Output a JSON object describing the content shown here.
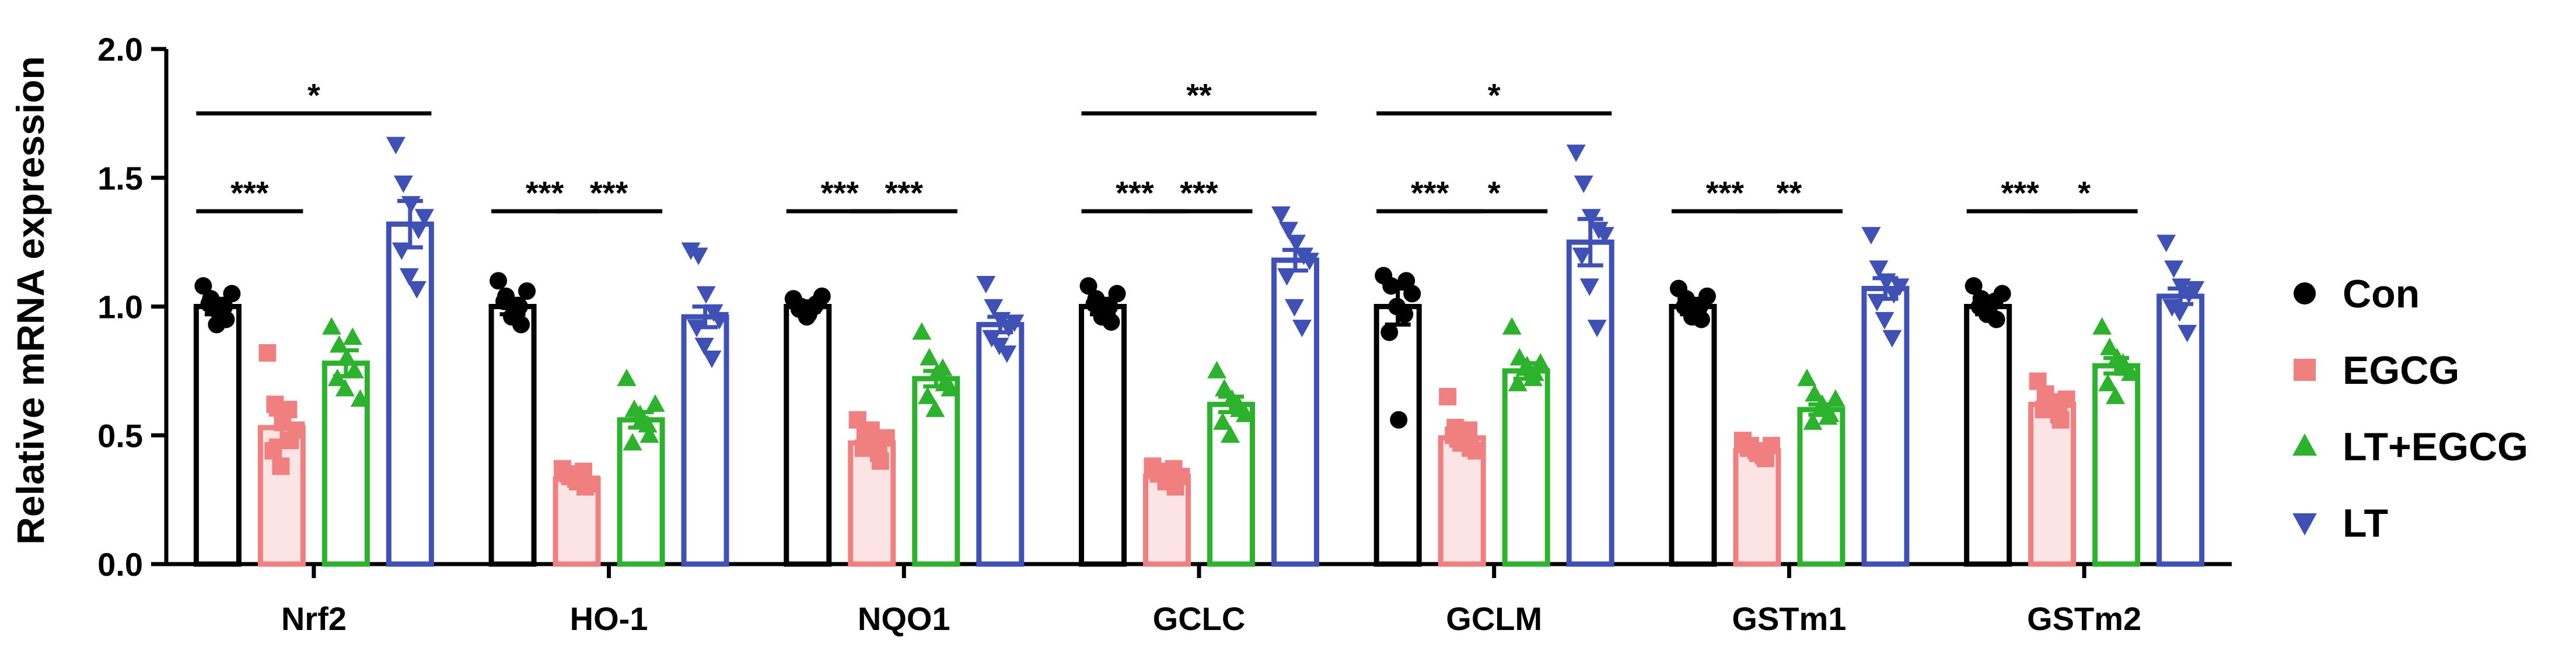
{
  "chart_data": {
    "type": "bar",
    "title": "",
    "xlabel": "",
    "ylabel": "Relative mRNA expression",
    "ylim": [
      0,
      2.0
    ],
    "yticks": [
      "0.0",
      "0.5",
      "1.0",
      "1.5",
      "2.0"
    ],
    "grid": false,
    "legend_position": "right",
    "categories": [
      "Nrf2",
      "HO-1",
      "NQO1",
      "GCLC",
      "GCLM",
      "GSTm1",
      "GSTm2"
    ],
    "series": [
      {
        "name": "Con",
        "color": "#000000",
        "marker": "circle",
        "fill": "#ffffff",
        "values": [
          1.0,
          1.0,
          1.0,
          1.0,
          1.0,
          1.0,
          1.0
        ],
        "sem": [
          0.03,
          0.03,
          0.02,
          0.03,
          0.07,
          0.03,
          0.03
        ],
        "points": [
          [
            1.08,
            1.03,
            0.98,
            0.95,
            1.01,
            0.93,
            1.0,
            1.05
          ],
          [
            1.1,
            1.04,
            0.97,
            0.93,
            1.02,
            0.96,
            1.0,
            1.06
          ],
          [
            1.03,
            1.0,
            0.97,
            1.01,
            0.99,
            0.96,
            1.0,
            1.04
          ],
          [
            1.08,
            1.03,
            0.97,
            0.94,
            1.01,
            0.96,
            1.0,
            1.05
          ],
          [
            1.12,
            1.08,
            0.56,
            1.1,
            0.9,
            1.0,
            0.97,
            1.05
          ],
          [
            1.07,
            1.03,
            0.98,
            0.95,
            1.0,
            0.96,
            1.0,
            1.04
          ],
          [
            1.08,
            1.03,
            0.98,
            0.95,
            1.0,
            0.97,
            1.02,
            1.05
          ]
        ]
      },
      {
        "name": "EGCG",
        "color": "#f08080",
        "marker": "square",
        "fill": "#fde4e4",
        "values": [
          0.53,
          0.33,
          0.47,
          0.34,
          0.49,
          0.44,
          0.62
        ],
        "sem": [
          0.05,
          0.01,
          0.03,
          0.01,
          0.03,
          0.01,
          0.02
        ],
        "points": [
          [
            0.82,
            0.62,
            0.55,
            0.48,
            0.44,
            0.38,
            0.6,
            0.52
          ],
          [
            0.37,
            0.34,
            0.32,
            0.3,
            0.35,
            0.33,
            0.36,
            0.31
          ],
          [
            0.56,
            0.5,
            0.47,
            0.4,
            0.45,
            0.52,
            0.43,
            0.49
          ],
          [
            0.38,
            0.36,
            0.33,
            0.3,
            0.35,
            0.32,
            0.37,
            0.34
          ],
          [
            0.65,
            0.53,
            0.48,
            0.45,
            0.5,
            0.47,
            0.52,
            0.44
          ],
          [
            0.48,
            0.46,
            0.43,
            0.41,
            0.45,
            0.44,
            0.42,
            0.46
          ],
          [
            0.71,
            0.66,
            0.62,
            0.56,
            0.6,
            0.63,
            0.58,
            0.64
          ]
        ]
      },
      {
        "name": "LT+EGCG",
        "color": "#2db22d",
        "marker": "triangle-up",
        "fill": "#ffffff",
        "values": [
          0.78,
          0.56,
          0.72,
          0.62,
          0.75,
          0.6,
          0.77
        ],
        "sem": [
          0.05,
          0.03,
          0.03,
          0.03,
          0.03,
          0.02,
          0.03
        ],
        "points": [
          [
            0.92,
            0.85,
            0.8,
            0.75,
            0.72,
            0.68,
            0.88,
            0.64
          ],
          [
            0.72,
            0.6,
            0.56,
            0.5,
            0.47,
            0.58,
            0.54,
            0.62
          ],
          [
            0.9,
            0.8,
            0.74,
            0.7,
            0.65,
            0.6,
            0.76,
            0.68
          ],
          [
            0.75,
            0.68,
            0.64,
            0.6,
            0.55,
            0.5,
            0.62,
            0.58
          ],
          [
            0.92,
            0.8,
            0.77,
            0.74,
            0.7,
            0.76,
            0.72,
            0.78
          ],
          [
            0.72,
            0.66,
            0.62,
            0.58,
            0.55,
            0.6,
            0.57,
            0.64
          ],
          [
            0.92,
            0.84,
            0.8,
            0.76,
            0.7,
            0.65,
            0.78,
            0.74
          ]
        ]
      },
      {
        "name": "LT",
        "color": "#3f51b5",
        "marker": "triangle-down",
        "fill": "#ffffff",
        "values": [
          1.32,
          0.96,
          0.93,
          1.18,
          1.25,
          1.07,
          1.04
        ],
        "sem": [
          0.09,
          0.04,
          0.03,
          0.04,
          0.09,
          0.04,
          0.03
        ],
        "points": [
          [
            1.63,
            1.48,
            1.4,
            1.3,
            1.22,
            1.12,
            1.07,
            1.35
          ],
          [
            1.22,
            1.2,
            1.05,
            0.98,
            0.92,
            0.85,
            0.8,
            0.95
          ],
          [
            1.09,
            1.0,
            0.95,
            0.92,
            0.88,
            0.85,
            0.82,
            0.94
          ],
          [
            1.36,
            1.3,
            1.25,
            1.2,
            1.12,
            1.0,
            0.92,
            1.18
          ],
          [
            1.6,
            1.48,
            1.35,
            1.3,
            1.2,
            1.08,
            0.92,
            1.28
          ],
          [
            1.28,
            1.15,
            1.1,
            1.05,
            1.02,
            0.95,
            0.88,
            1.08
          ],
          [
            1.25,
            1.15,
            1.08,
            1.05,
            1.0,
            0.98,
            0.9,
            1.07
          ]
        ]
      }
    ],
    "significance": [
      {
        "category": "Nrf2",
        "from": "Con",
        "to": "EGCG",
        "label": "***",
        "level": 1.37
      },
      {
        "category": "Nrf2",
        "from": "Con",
        "to": "LT",
        "label": "*",
        "level": 1.75
      },
      {
        "category": "HO-1",
        "from": "Con",
        "to": "EGCG",
        "label": "***",
        "level": 1.37
      },
      {
        "category": "HO-1",
        "from": "EGCG",
        "to": "LT+EGCG",
        "label": "***",
        "level": 1.37
      },
      {
        "category": "NQO1",
        "from": "Con",
        "to": "EGCG",
        "label": "***",
        "level": 1.37
      },
      {
        "category": "NQO1",
        "from": "EGCG",
        "to": "LT+EGCG",
        "label": "***",
        "level": 1.37
      },
      {
        "category": "GCLC",
        "from": "Con",
        "to": "EGCG",
        "label": "***",
        "level": 1.37
      },
      {
        "category": "GCLC",
        "from": "EGCG",
        "to": "LT+EGCG",
        "label": "***",
        "level": 1.37
      },
      {
        "category": "GCLC",
        "from": "Con",
        "to": "LT",
        "label": "**",
        "level": 1.75
      },
      {
        "category": "GCLM",
        "from": "Con",
        "to": "EGCG",
        "label": "***",
        "level": 1.37
      },
      {
        "category": "GCLM",
        "from": "EGCG",
        "to": "LT+EGCG",
        "label": "*",
        "level": 1.37
      },
      {
        "category": "GCLM",
        "from": "Con",
        "to": "LT",
        "label": "*",
        "level": 1.75
      },
      {
        "category": "GSTm1",
        "from": "Con",
        "to": "EGCG",
        "label": "***",
        "level": 1.37
      },
      {
        "category": "GSTm1",
        "from": "EGCG",
        "to": "LT+EGCG",
        "label": "**",
        "level": 1.37
      },
      {
        "category": "GSTm2",
        "from": "Con",
        "to": "EGCG",
        "label": "***",
        "level": 1.37
      },
      {
        "category": "GSTm2",
        "from": "EGCG",
        "to": "LT+EGCG",
        "label": "*",
        "level": 1.37
      }
    ]
  }
}
